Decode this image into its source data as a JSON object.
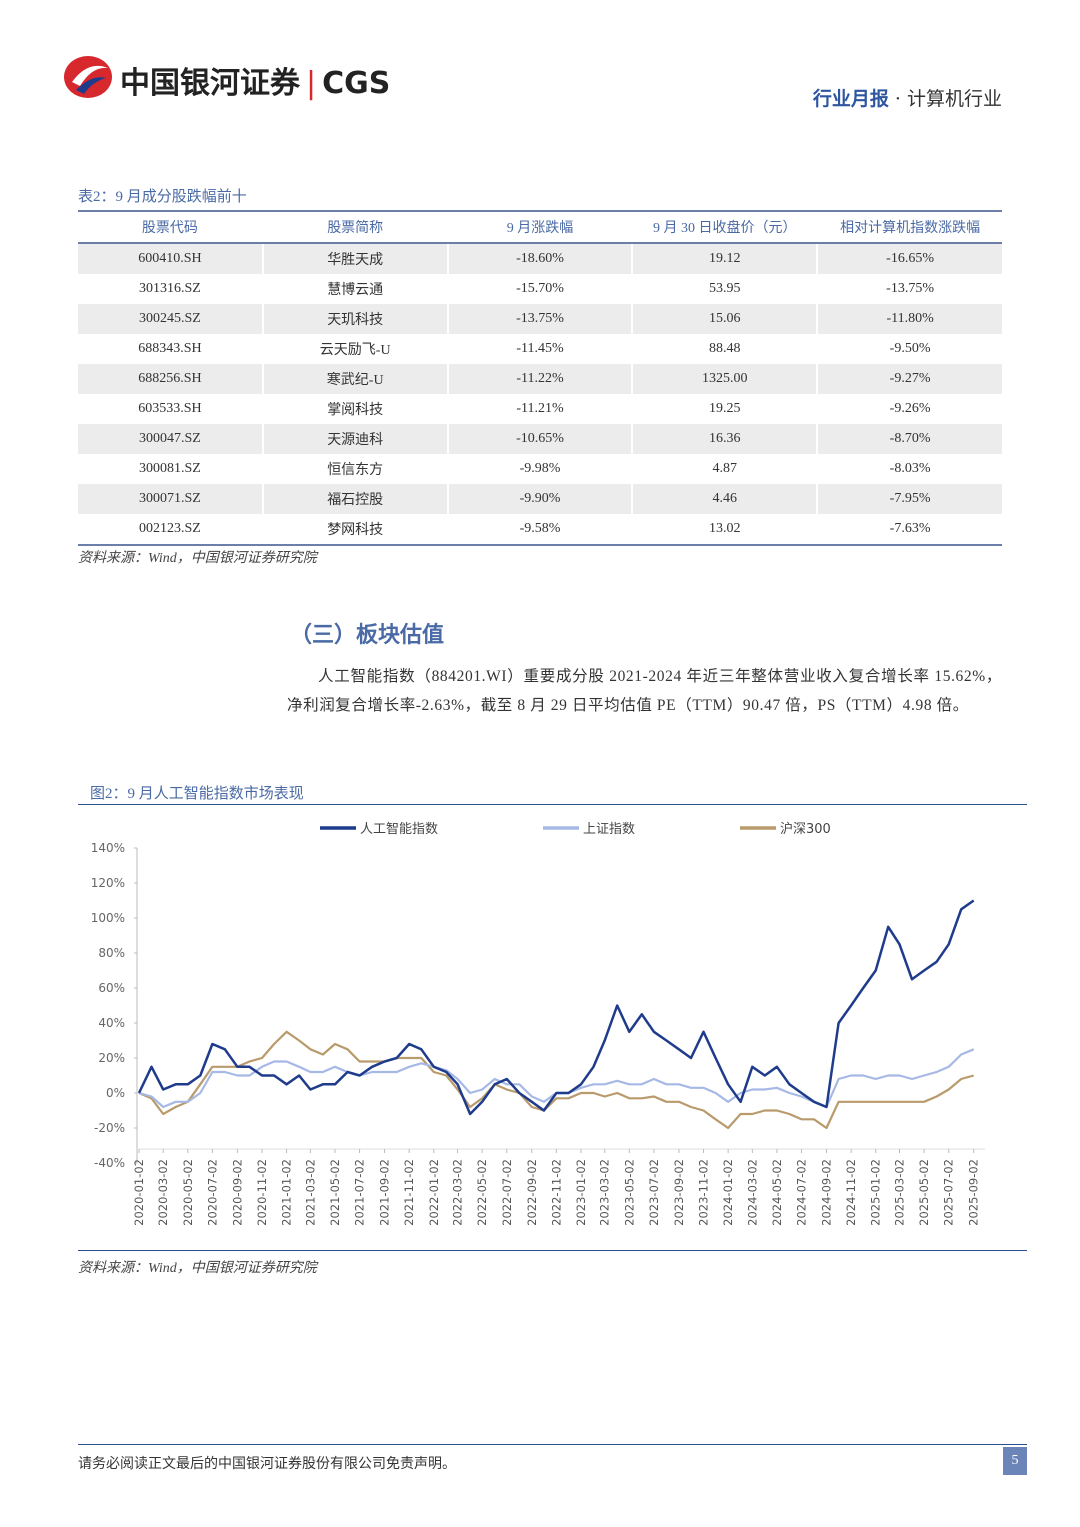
{
  "header": {
    "logo_cn": "中国银河证券",
    "logo_en": "CGS",
    "report_type": "行业月报",
    "separator": "·",
    "industry": "计算机行业"
  },
  "table": {
    "caption": "表2：9 月成分股跌幅前十",
    "columns": [
      "股票代码",
      "股票简称",
      "9 月涨跌幅",
      "9 月 30 日收盘价（元）",
      "相对计算机指数涨跌幅"
    ],
    "rows": [
      [
        "600410.SH",
        "华胜天成",
        "-18.60%",
        "19.12",
        "-16.65%"
      ],
      [
        "301316.SZ",
        "慧博云通",
        "-15.70%",
        "53.95",
        "-13.75%"
      ],
      [
        "300245.SZ",
        "天玑科技",
        "-13.75%",
        "15.06",
        "-11.80%"
      ],
      [
        "688343.SH",
        "云天励飞-U",
        "-11.45%",
        "88.48",
        "-9.50%"
      ],
      [
        "688256.SH",
        "寒武纪-U",
        "-11.22%",
        "1325.00",
        "-9.27%"
      ],
      [
        "603533.SH",
        "掌阅科技",
        "-11.21%",
        "19.25",
        "-9.26%"
      ],
      [
        "300047.SZ",
        "天源迪科",
        "-10.65%",
        "16.36",
        "-8.70%"
      ],
      [
        "300081.SZ",
        "恒信东方",
        "-9.98%",
        "4.87",
        "-8.03%"
      ],
      [
        "300071.SZ",
        "福石控股",
        "-9.90%",
        "4.46",
        "-7.95%"
      ],
      [
        "002123.SZ",
        "梦网科技",
        "-9.58%",
        "13.02",
        "-7.63%"
      ]
    ],
    "source": "资料来源：Wind，中国银河证券研究院"
  },
  "section": {
    "heading": "（三）板块估值",
    "paragraph": "人工智能指数（884201.WI）重要成分股 2021-2024 年近三年整体营业收入复合增长率 15.62%，净利润复合增长率-2.63%，截至 8 月 29 日平均估值 PE（TTM）90.47 倍，PS（TTM）4.98 倍。"
  },
  "chart_data": {
    "type": "line",
    "title": "图2：9 月人工智能指数市场表现",
    "source": "资料来源：Wind，中国银河证券研究院",
    "x": [
      "2020-01-02",
      "2020-02-02",
      "2020-03-02",
      "2020-04-02",
      "2020-05-02",
      "2020-06-02",
      "2020-07-02",
      "2020-08-02",
      "2020-09-02",
      "2020-10-02",
      "2020-11-02",
      "2020-12-02",
      "2021-01-02",
      "2021-02-02",
      "2021-03-02",
      "2021-04-02",
      "2021-05-02",
      "2021-06-02",
      "2021-07-02",
      "2021-08-02",
      "2021-09-02",
      "2021-10-02",
      "2021-11-02",
      "2021-12-02",
      "2022-01-02",
      "2022-02-02",
      "2022-03-02",
      "2022-04-02",
      "2022-05-02",
      "2022-06-02",
      "2022-07-02",
      "2022-08-02",
      "2022-09-02",
      "2022-10-02",
      "2022-11-02",
      "2022-12-02",
      "2023-01-02",
      "2023-02-02",
      "2023-03-02",
      "2023-04-02",
      "2023-05-02",
      "2023-06-02",
      "2023-07-02",
      "2023-08-02",
      "2023-09-02",
      "2023-10-02",
      "2023-11-02",
      "2023-12-02",
      "2024-01-02",
      "2024-02-02",
      "2024-03-02",
      "2024-04-02",
      "2024-05-02",
      "2024-06-02",
      "2024-07-02",
      "2024-08-02",
      "2024-09-02",
      "2024-10-02",
      "2024-11-02",
      "2024-12-02",
      "2025-01-02",
      "2025-02-02",
      "2025-03-02",
      "2025-04-02",
      "2025-05-02",
      "2025-06-02",
      "2025-07-02",
      "2025-08-02",
      "2025-09-02"
    ],
    "series": [
      {
        "name": "人工智能指数",
        "color": "#1f3b8c",
        "values": [
          0,
          15,
          2,
          5,
          5,
          10,
          28,
          25,
          15,
          15,
          10,
          10,
          5,
          10,
          2,
          5,
          5,
          12,
          10,
          15,
          18,
          20,
          28,
          25,
          15,
          12,
          5,
          -12,
          -5,
          5,
          8,
          0,
          -5,
          -10,
          0,
          0,
          5,
          15,
          30,
          50,
          35,
          45,
          35,
          30,
          25,
          20,
          35,
          20,
          5,
          -5,
          15,
          10,
          15,
          5,
          0,
          -5,
          -8,
          40,
          50,
          60,
          70,
          95,
          85,
          65,
          70,
          75,
          85,
          105,
          110
        ]
      },
      {
        "name": "上证指数",
        "color": "#a6b8e6",
        "values": [
          0,
          -2,
          -8,
          -5,
          -5,
          0,
          12,
          12,
          10,
          10,
          15,
          18,
          18,
          15,
          12,
          12,
          15,
          12,
          10,
          12,
          12,
          12,
          15,
          17,
          15,
          13,
          8,
          0,
          2,
          8,
          5,
          5,
          -2,
          -5,
          0,
          0,
          3,
          5,
          5,
          7,
          5,
          5,
          8,
          5,
          5,
          3,
          3,
          0,
          -5,
          0,
          2,
          2,
          3,
          0,
          -2,
          -5,
          -8,
          8,
          10,
          10,
          8,
          10,
          10,
          8,
          10,
          12,
          15,
          22,
          25
        ]
      },
      {
        "name": "沪深300",
        "color": "#b99a6b",
        "values": [
          0,
          -3,
          -12,
          -8,
          -5,
          5,
          15,
          15,
          15,
          18,
          20,
          28,
          35,
          30,
          25,
          22,
          28,
          25,
          18,
          18,
          18,
          20,
          20,
          20,
          12,
          10,
          2,
          -8,
          -3,
          5,
          2,
          0,
          -8,
          -10,
          -3,
          -3,
          0,
          0,
          -2,
          0,
          -3,
          -3,
          -2,
          -5,
          -5,
          -8,
          -10,
          -15,
          -20,
          -12,
          -12,
          -10,
          -10,
          -12,
          -15,
          -15,
          -20,
          -5,
          -5,
          -5,
          -5,
          -5,
          -5,
          -5,
          -5,
          -2,
          2,
          8,
          10
        ]
      }
    ],
    "xlim": [
      "2020-01-02",
      "2025-09-30"
    ],
    "xticks": [
      "2020-01-02",
      "2020-03-02",
      "2020-05-02",
      "2020-07-02",
      "2020-09-02",
      "2020-11-02",
      "2021-01-02",
      "2021-03-02",
      "2021-05-02",
      "2021-07-02",
      "2021-09-02",
      "2021-11-02",
      "2022-01-02",
      "2022-03-02",
      "2022-05-02",
      "2022-07-02",
      "2022-09-02",
      "2022-11-02",
      "2023-01-02",
      "2023-03-02",
      "2023-05-02",
      "2023-07-02",
      "2023-09-02",
      "2023-11-02",
      "2024-01-02",
      "2024-03-02",
      "2024-05-02",
      "2024-07-02",
      "2024-09-02",
      "2024-11-02",
      "2025-01-02",
      "2025-03-02",
      "2025-05-02",
      "2025-07-02",
      "2025-09-02"
    ],
    "ylim": [
      -40,
      140
    ],
    "yticks": [
      {
        "value": -40,
        "label": "-40%"
      },
      {
        "value": -20,
        "label": "-20%"
      },
      {
        "value": 0,
        "label": "0%"
      },
      {
        "value": 20,
        "label": "20%"
      },
      {
        "value": 40,
        "label": "40%"
      },
      {
        "value": 60,
        "label": "60%"
      },
      {
        "value": 80,
        "label": "80%"
      },
      {
        "value": 100,
        "label": "100%"
      },
      {
        "value": 120,
        "label": "120%"
      },
      {
        "value": 140,
        "label": "140%"
      }
    ],
    "legend": "top",
    "grid": false
  },
  "footer": {
    "disclaimer": "请务必阅读正文最后的中国银河证券股份有限公司免责声明。",
    "page": "5"
  }
}
